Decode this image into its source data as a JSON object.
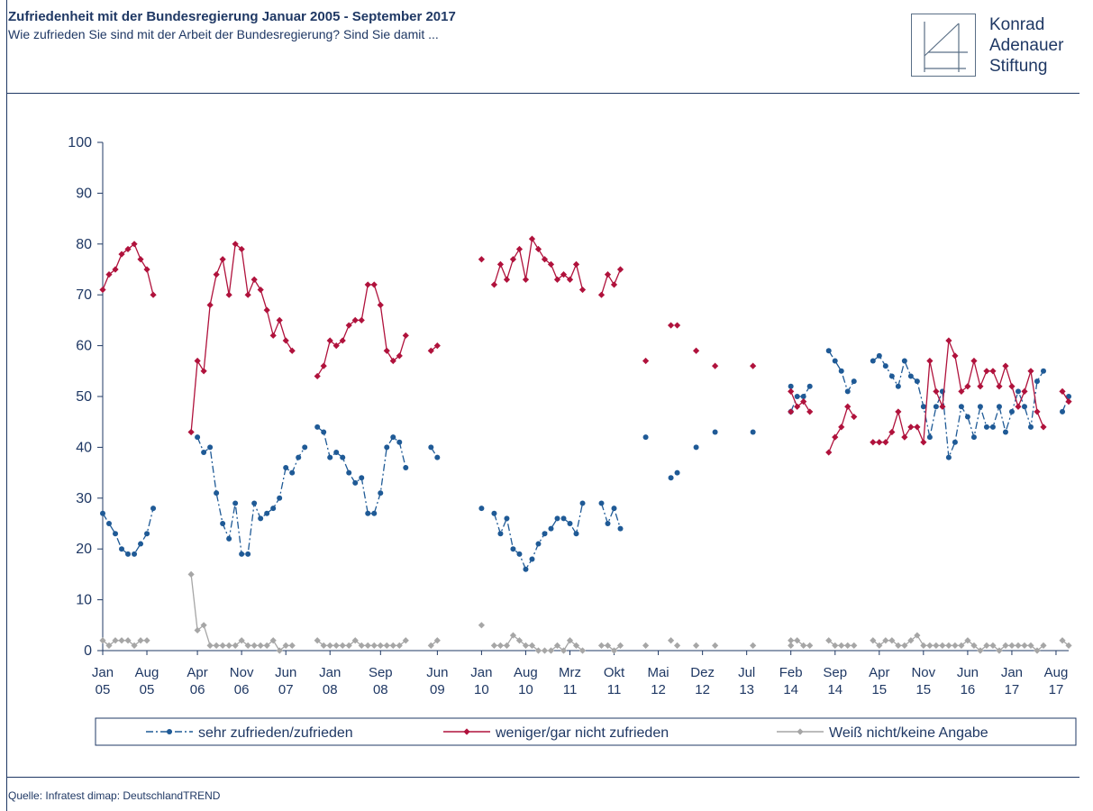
{
  "header": {
    "title": "Zufriedenheit  mit der Bundesregierung Januar 2005 - September 2017",
    "subtitle": "Wie zufrieden Sie sind mit der Arbeit der Bundesregierung?  Sind Sie damit ..."
  },
  "logo": {
    "line1": "Konrad",
    "line2": "Adenauer",
    "line3": "Stiftung"
  },
  "footer": {
    "source": "Quelle:  Infratest dimap: DeutschlandTREND"
  },
  "colors": {
    "frame": "#1f3864",
    "satisfied": "#1f5a96",
    "dissatisfied": "#b0123c",
    "unknown": "#a6a6a6"
  },
  "chart_data": {
    "type": "line",
    "title": "Zufriedenheit  mit der Bundesregierung Januar 2005 - September 2017",
    "ylim": [
      0,
      100
    ],
    "yticks": [
      0,
      10,
      20,
      30,
      40,
      50,
      60,
      70,
      80,
      90,
      100
    ],
    "xlim": [
      2005.0,
      2017.75
    ],
    "xticks": [
      {
        "t": 2005.0,
        "month": "Jan",
        "year": "05"
      },
      {
        "t": 2005.583,
        "month": "Aug",
        "year": "05"
      },
      {
        "t": 2006.25,
        "month": "Apr",
        "year": "06"
      },
      {
        "t": 2006.833,
        "month": "Nov",
        "year": "06"
      },
      {
        "t": 2007.417,
        "month": "Jun",
        "year": "07"
      },
      {
        "t": 2008.0,
        "month": "Jan",
        "year": "08"
      },
      {
        "t": 2008.667,
        "month": "Sep",
        "year": "08"
      },
      {
        "t": 2009.417,
        "month": "Jun",
        "year": "09"
      },
      {
        "t": 2010.0,
        "month": "Jan",
        "year": "10"
      },
      {
        "t": 2010.583,
        "month": "Aug",
        "year": "10"
      },
      {
        "t": 2011.167,
        "month": "Mrz",
        "year": "11"
      },
      {
        "t": 2011.75,
        "month": "Okt",
        "year": "11"
      },
      {
        "t": 2012.333,
        "month": "Mai",
        "year": "12"
      },
      {
        "t": 2012.917,
        "month": "Dez",
        "year": "12"
      },
      {
        "t": 2013.5,
        "month": "Jul",
        "year": "13"
      },
      {
        "t": 2014.083,
        "month": "Feb",
        "year": "14"
      },
      {
        "t": 2014.667,
        "month": "Sep",
        "year": "14"
      },
      {
        "t": 2015.25,
        "month": "Apr",
        "year": "15"
      },
      {
        "t": 2015.833,
        "month": "Nov",
        "year": "15"
      },
      {
        "t": 2016.417,
        "month": "Jun",
        "year": "16"
      },
      {
        "t": 2017.0,
        "month": "Jan",
        "year": "17"
      },
      {
        "t": 2017.583,
        "month": "Aug",
        "year": "17"
      }
    ],
    "legend_position": "bottom",
    "series": [
      {
        "name": "sehr zufrieden/zufrieden",
        "color": "#1f5a96",
        "marker": "circle",
        "line": "dashdot",
        "segments": [
          {
            "start": 2005.0,
            "values": [
              27,
              25,
              23,
              20,
              19,
              19,
              21,
              23,
              28
            ]
          },
          {
            "start": 2006.25,
            "values": [
              42,
              39,
              40,
              31,
              25,
              22,
              29,
              19,
              19,
              29,
              26,
              27,
              28,
              30,
              36,
              35,
              38,
              40
            ]
          },
          {
            "start": 2007.833,
            "values": [
              44,
              43,
              38,
              39,
              38,
              35,
              33,
              34,
              27,
              27,
              31,
              40,
              42,
              41,
              36
            ]
          },
          {
            "start": 2009.333,
            "values": [
              40,
              38
            ]
          },
          {
            "start": 2010.0,
            "values": [
              28
            ]
          },
          {
            "start": 2010.167,
            "values": [
              27,
              23,
              26,
              20,
              19,
              16,
              18,
              21,
              23,
              24,
              26,
              26,
              25,
              23,
              29
            ]
          },
          {
            "start": 2011.583,
            "values": [
              29,
              25,
              28,
              24
            ]
          }
        ],
        "points": [
          {
            "t": 2012.167,
            "v": 42
          },
          {
            "t": 2012.5,
            "v": 34
          },
          {
            "t": 2012.583,
            "v": 35
          },
          {
            "t": 2012.833,
            "v": 40
          },
          {
            "t": 2013.083,
            "v": 43
          },
          {
            "t": 2013.583,
            "v": 43
          },
          {
            "t": 2014.083,
            "v": 52
          }
        ],
        "segments_late": [
          {
            "start": 2014.083,
            "values": [
              47,
              50,
              50,
              52
            ]
          },
          {
            "start": 2014.583,
            "values": [
              59,
              57,
              55,
              51,
              53
            ]
          },
          {
            "start": 2015.167,
            "values": [
              57,
              58,
              56,
              54,
              52,
              57,
              54,
              53,
              48,
              42,
              48,
              51,
              38,
              41,
              48,
              46,
              42,
              48,
              44,
              44,
              48,
              43,
              47,
              51,
              48,
              44,
              53,
              55
            ]
          }
        ],
        "tail": [
          {
            "t": 2017.667,
            "v": 47
          },
          {
            "t": 2017.75,
            "v": 50
          }
        ]
      },
      {
        "name": "weniger/gar nicht zufrieden",
        "color": "#b0123c",
        "marker": "diamond",
        "line": "solid",
        "segments": [
          {
            "start": 2005.0,
            "values": [
              71,
              74,
              75,
              78,
              79,
              80,
              77,
              75,
              70
            ]
          },
          {
            "start": 2006.167,
            "values": [
              43,
              57,
              55,
              68,
              74,
              77,
              70,
              80,
              79,
              70,
              73,
              71,
              67,
              62,
              65,
              61,
              59
            ]
          },
          {
            "start": 2007.833,
            "values": [
              54,
              56,
              61,
              60,
              61,
              64,
              65,
              65,
              72,
              72,
              68,
              59,
              57,
              58,
              62
            ]
          },
          {
            "start": 2009.333,
            "values": [
              59,
              60
            ]
          },
          {
            "start": 2010.0,
            "values": [
              77
            ]
          },
          {
            "start": 2010.167,
            "values": [
              72,
              76,
              73,
              77,
              79,
              73,
              81,
              79,
              77,
              76,
              73,
              74,
              73,
              76,
              71
            ]
          },
          {
            "start": 2011.583,
            "values": [
              70,
              74,
              72,
              75
            ]
          }
        ],
        "points": [
          {
            "t": 2012.167,
            "v": 57
          },
          {
            "t": 2012.5,
            "v": 64
          },
          {
            "t": 2012.583,
            "v": 64
          },
          {
            "t": 2012.833,
            "v": 59
          },
          {
            "t": 2013.083,
            "v": 56
          },
          {
            "t": 2013.583,
            "v": 56
          },
          {
            "t": 2014.083,
            "v": 47
          }
        ],
        "segments_late": [
          {
            "start": 2014.083,
            "values": [
              51,
              48,
              49,
              47
            ]
          },
          {
            "start": 2014.583,
            "values": [
              39,
              42,
              44,
              48,
              46
            ]
          },
          {
            "start": 2015.167,
            "values": [
              41,
              41,
              41,
              43,
              47,
              42,
              44,
              44,
              41,
              57,
              51,
              48,
              61,
              58,
              51,
              52,
              57,
              52,
              55,
              55,
              52,
              56,
              52,
              48,
              51,
              55,
              47,
              44
            ]
          }
        ],
        "tail": [
          {
            "t": 2017.667,
            "v": 51
          },
          {
            "t": 2017.75,
            "v": 49
          }
        ]
      },
      {
        "name": "Weiß nicht/keine Angabe",
        "color": "#a6a6a6",
        "marker": "diamond",
        "line": "solid",
        "segments": [
          {
            "start": 2005.0,
            "values": [
              2,
              1,
              2,
              2,
              2,
              1,
              2,
              2
            ]
          },
          {
            "start": 2006.167,
            "values": [
              15,
              4,
              5,
              1,
              1,
              1,
              1,
              1,
              2,
              1,
              1,
              1,
              1,
              2,
              0,
              1,
              1
            ]
          },
          {
            "start": 2007.833,
            "values": [
              2,
              1,
              1,
              1,
              1,
              1,
              2,
              1,
              1,
              1,
              1,
              1,
              1,
              1,
              2
            ]
          },
          {
            "start": 2009.333,
            "values": [
              1,
              2
            ]
          },
          {
            "start": 2010.0,
            "values": [
              5
            ]
          },
          {
            "start": 2010.167,
            "values": [
              1,
              1,
              1,
              3,
              2,
              1,
              1,
              0,
              0,
              0,
              1,
              0,
              2,
              1,
              0
            ]
          },
          {
            "start": 2011.583,
            "values": [
              1,
              1,
              0,
              1
            ]
          }
        ],
        "points": [
          {
            "t": 2012.167,
            "v": 1
          },
          {
            "t": 2012.5,
            "v": 2
          },
          {
            "t": 2012.583,
            "v": 1
          },
          {
            "t": 2012.833,
            "v": 1
          },
          {
            "t": 2013.083,
            "v": 1
          },
          {
            "t": 2013.583,
            "v": 1
          },
          {
            "t": 2014.083,
            "v": 1
          }
        ],
        "segments_late": [
          {
            "start": 2014.083,
            "values": [
              2,
              2,
              1,
              1
            ]
          },
          {
            "start": 2014.583,
            "values": [
              2,
              1,
              1,
              1,
              1
            ]
          },
          {
            "start": 2015.167,
            "values": [
              2,
              1,
              2,
              2,
              1,
              1,
              2,
              3,
              1,
              1,
              1,
              1,
              1,
              1,
              1,
              2,
              1,
              0,
              1,
              1,
              0,
              1,
              1,
              1,
              1,
              1,
              0,
              1
            ]
          }
        ],
        "tail": [
          {
            "t": 2017.667,
            "v": 2
          },
          {
            "t": 2017.75,
            "v": 1
          }
        ]
      }
    ]
  }
}
